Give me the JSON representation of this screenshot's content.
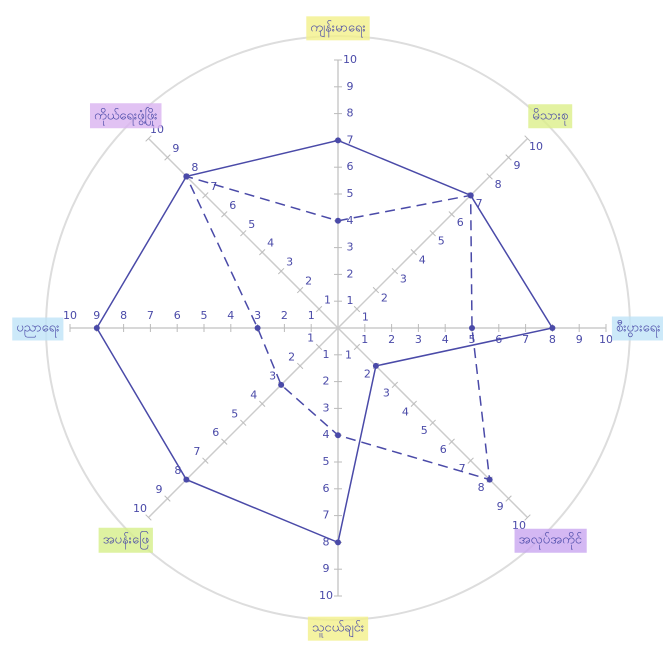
{
  "chart_data": {
    "type": "radar",
    "categories": [
      "ကျန်းမာရေး",
      "မိသားစု",
      "စီးပွားရေး",
      "အလုပ်အကိုင်",
      "သူငယ်ချင်း",
      "အပန်းဖြေ",
      "ပညာရေး",
      "ကိုယ်ရေးဖွံ့ဖြိုး"
    ],
    "label_colors": [
      "#f3f08a",
      "#dcef8a",
      "#bfe3f7",
      "#c9a6f0",
      "#f3f08a",
      "#d6ef8a",
      "#bfe3f7",
      "#d9b3f0"
    ],
    "series": [
      {
        "color": "#4a4aa8",
        "line_style": "solid",
        "values": [
          7,
          7,
          8,
          2,
          8,
          8,
          9,
          8
        ]
      },
      {
        "color": "#4a4aa8",
        "line_style": "dashed",
        "values": [
          4,
          7,
          5,
          8,
          4,
          3,
          3,
          8
        ]
      }
    ],
    "ylim": [
      0,
      10
    ],
    "yticks": [
      1,
      2,
      3,
      4,
      5,
      6,
      7,
      8,
      9,
      10
    ]
  }
}
